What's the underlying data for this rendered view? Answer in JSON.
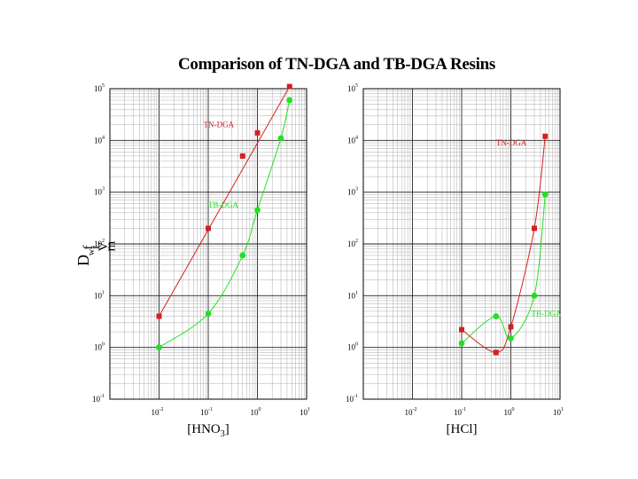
{
  "title": "Comparison of TN-DGA and TB-DGA Resins",
  "ylabel": {
    "main": "D",
    "sub": "w",
    "stack": [
      "f",
      "t",
      "V",
      "m"
    ]
  },
  "colors": {
    "tn": "#d42020",
    "tb": "#22e022",
    "grid": "#999999",
    "majorgrid": "#222222"
  },
  "chart_data": [
    {
      "type": "scatter",
      "xscale": "log",
      "yscale": "log",
      "xlim": [
        0.001,
        10
      ],
      "ylim": [
        0.1,
        100000
      ],
      "xlabel": {
        "main": "[HNO",
        "sub": "3",
        "close": "]"
      },
      "xticks": [
        {
          "b": "10",
          "e": "-2",
          "v": 0.01
        },
        {
          "b": "10",
          "e": "-1",
          "v": 0.1
        },
        {
          "b": "10",
          "e": "0",
          "v": 1
        },
        {
          "b": "10",
          "e": "1",
          "v": 10
        }
      ],
      "yticks": [
        {
          "b": "10",
          "e": "-1",
          "v": 0.1
        },
        {
          "b": "10",
          "e": "0",
          "v": 1
        },
        {
          "b": "10",
          "e": "1",
          "v": 10
        },
        {
          "b": "10",
          "e": "2",
          "v": 100
        },
        {
          "b": "10",
          "e": "3",
          "v": 1000
        },
        {
          "b": "10",
          "e": "4",
          "v": 10000
        },
        {
          "b": "10",
          "e": "5",
          "v": 100000
        }
      ],
      "series": [
        {
          "name": "TN-DGA",
          "marker": "square",
          "x": [
            0.01,
            0.1,
            0.5,
            1.0,
            4.5
          ],
          "y": [
            4,
            200,
            5000,
            14000,
            110000
          ],
          "label_at": [
            0.08,
            18000
          ]
        },
        {
          "name": "TB-DGA",
          "marker": "circle",
          "x": [
            0.01,
            0.1,
            0.5,
            1.0,
            3.0,
            4.5
          ],
          "y": [
            1.0,
            4.5,
            60,
            450,
            11000,
            60000
          ],
          "label_at": [
            0.1,
            500
          ]
        }
      ]
    },
    {
      "type": "scatter",
      "xscale": "log",
      "yscale": "log",
      "xlim": [
        0.001,
        10
      ],
      "ylim": [
        0.1,
        100000
      ],
      "xlabel": {
        "main": "[HCl]",
        "sub": "",
        "close": ""
      },
      "xticks": [
        {
          "b": "10",
          "e": "-2",
          "v": 0.01
        },
        {
          "b": "10",
          "e": "-1",
          "v": 0.1
        },
        {
          "b": "10",
          "e": "0",
          "v": 1
        },
        {
          "b": "10",
          "e": "1",
          "v": 10
        }
      ],
      "yticks": [
        {
          "b": "10",
          "e": "-1",
          "v": 0.1
        },
        {
          "b": "10",
          "e": "0",
          "v": 1
        },
        {
          "b": "10",
          "e": "1",
          "v": 10
        },
        {
          "b": "10",
          "e": "2",
          "v": 100
        },
        {
          "b": "10",
          "e": "3",
          "v": 1000
        },
        {
          "b": "10",
          "e": "4",
          "v": 10000
        },
        {
          "b": "10",
          "e": "5",
          "v": 100000
        }
      ],
      "series": [
        {
          "name": "TN-DGA",
          "marker": "square",
          "x": [
            0.1,
            0.5,
            1.0,
            3.0,
            5.0
          ],
          "y": [
            2.2,
            0.8,
            2.5,
            200,
            12000
          ],
          "label_at": [
            0.5,
            8000
          ]
        },
        {
          "name": "TB-DGA",
          "marker": "circle",
          "x": [
            0.1,
            0.5,
            1.0,
            3.0,
            5.0
          ],
          "y": [
            1.2,
            4.0,
            1.5,
            10,
            900
          ],
          "label_at": [
            2.6,
            4
          ]
        }
      ]
    }
  ]
}
